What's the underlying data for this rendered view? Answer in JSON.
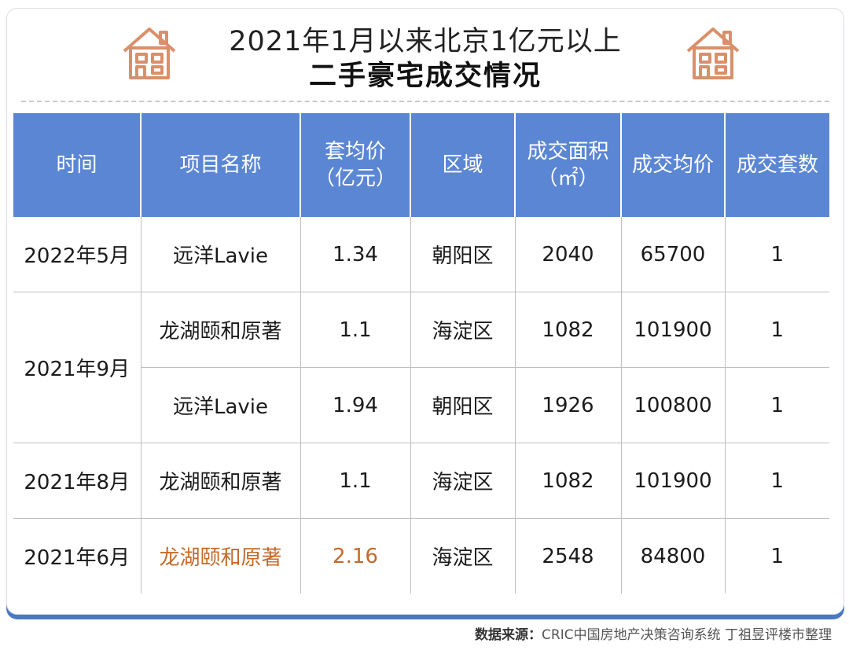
{
  "title": {
    "line1": "2021年1月以来北京1亿元以上",
    "line2": "二手豪宅成交情况"
  },
  "icons": {
    "left": "house-icon",
    "right": "house-icon"
  },
  "colors": {
    "header_bg": "#5b86d3",
    "accent_orange": "#c46a2a",
    "house_icon": "#d9906a"
  },
  "table": {
    "headers": [
      {
        "line1": "时间",
        "line2": ""
      },
      {
        "line1": "项目名称",
        "line2": ""
      },
      {
        "line1": "套均价",
        "line2": "（亿元）"
      },
      {
        "line1": "区域",
        "line2": ""
      },
      {
        "line1": "成交面积",
        "line2": "（㎡）"
      },
      {
        "line1": "成交均价",
        "line2": ""
      },
      {
        "line1": "成交套数",
        "line2": ""
      }
    ],
    "rows": [
      {
        "time": "2022年5月",
        "project": "远洋Lavie",
        "avg_price": "1.34",
        "district": "朝阳区",
        "area": "2040",
        "unit_price": "65700",
        "count": "1"
      },
      {
        "time": "2021年9月",
        "project": "龙湖颐和原著",
        "avg_price": "1.1",
        "district": "海淀区",
        "area": "1082",
        "unit_price": "101900",
        "count": "1"
      },
      {
        "time": "",
        "project": "远洋Lavie",
        "avg_price": "1.94",
        "district": "朝阳区",
        "area": "1926",
        "unit_price": "100800",
        "count": "1"
      },
      {
        "time": "2021年8月",
        "project": "龙湖颐和原著",
        "avg_price": "1.1",
        "district": "海淀区",
        "area": "1082",
        "unit_price": "101900",
        "count": "1"
      },
      {
        "time": "2021年6月",
        "project": "龙湖颐和原著",
        "avg_price": "2.16",
        "district": "海淀区",
        "area": "2548",
        "unit_price": "84800",
        "count": "1"
      }
    ]
  },
  "source": {
    "label": "数据来源：",
    "text": "CRIC中国房地产决策咨询系统 丁祖昱评楼市整理"
  }
}
